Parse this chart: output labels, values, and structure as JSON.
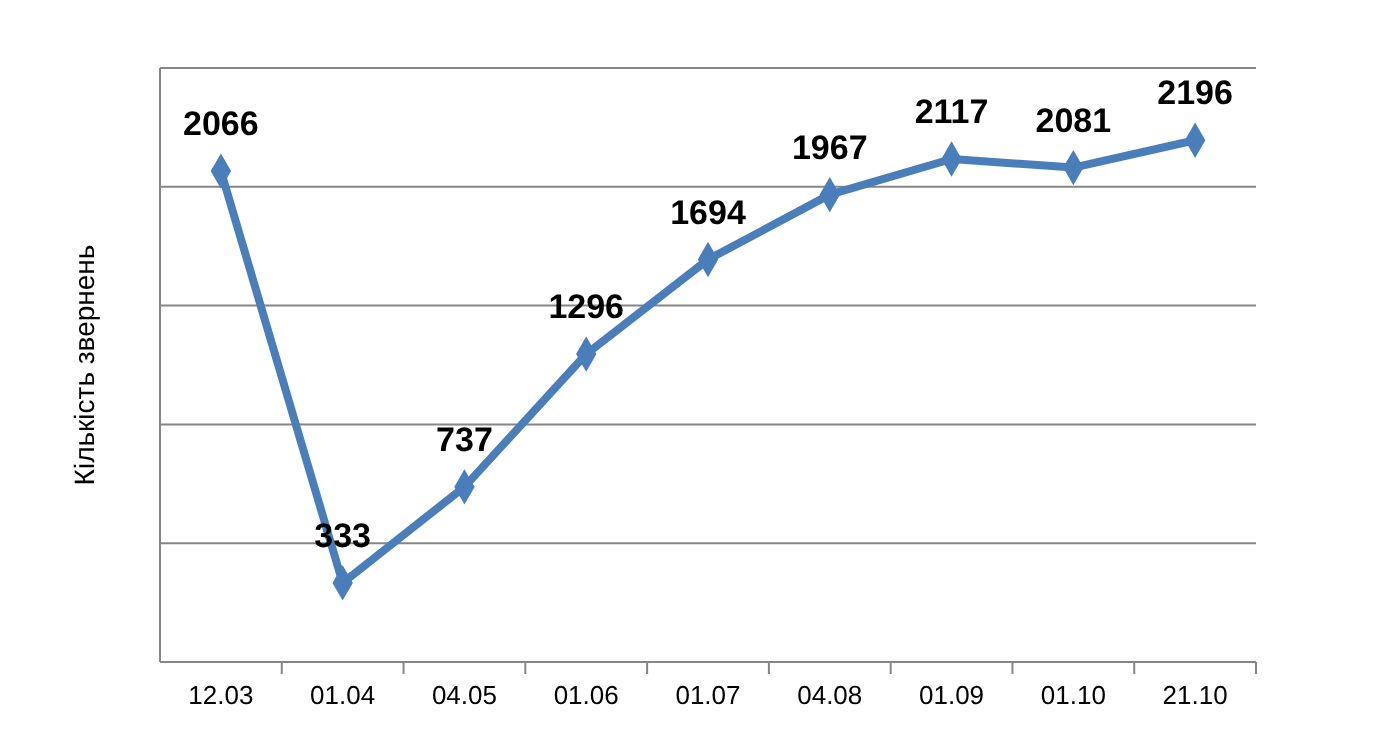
{
  "chart_data": {
    "type": "line",
    "ylabel": "Кількість звернень",
    "categories": [
      "12.03",
      "01.04",
      "04.05",
      "01.06",
      "01.07",
      "04.08",
      "01.09",
      "01.10",
      "21.10"
    ],
    "series": [
      {
        "color": "#4a7ebb",
        "values": [
          2066,
          333,
          737,
          1296,
          1694,
          1967,
          2117,
          2081,
          2196
        ]
      }
    ],
    "ylim": [
      0,
      2500
    ],
    "yticks": [
      {
        "value": 0,
        "label": null
      },
      {
        "value": 500,
        "label": null
      },
      {
        "value": 1000,
        "label": null
      },
      {
        "value": 1500,
        "label": null
      },
      {
        "value": 2000,
        "label": null
      },
      {
        "value": 2500,
        "label": null
      }
    ],
    "tick_labels": "x",
    "grid": "y",
    "marker": "diamond",
    "line_style": "solid",
    "data_labels": true
  }
}
